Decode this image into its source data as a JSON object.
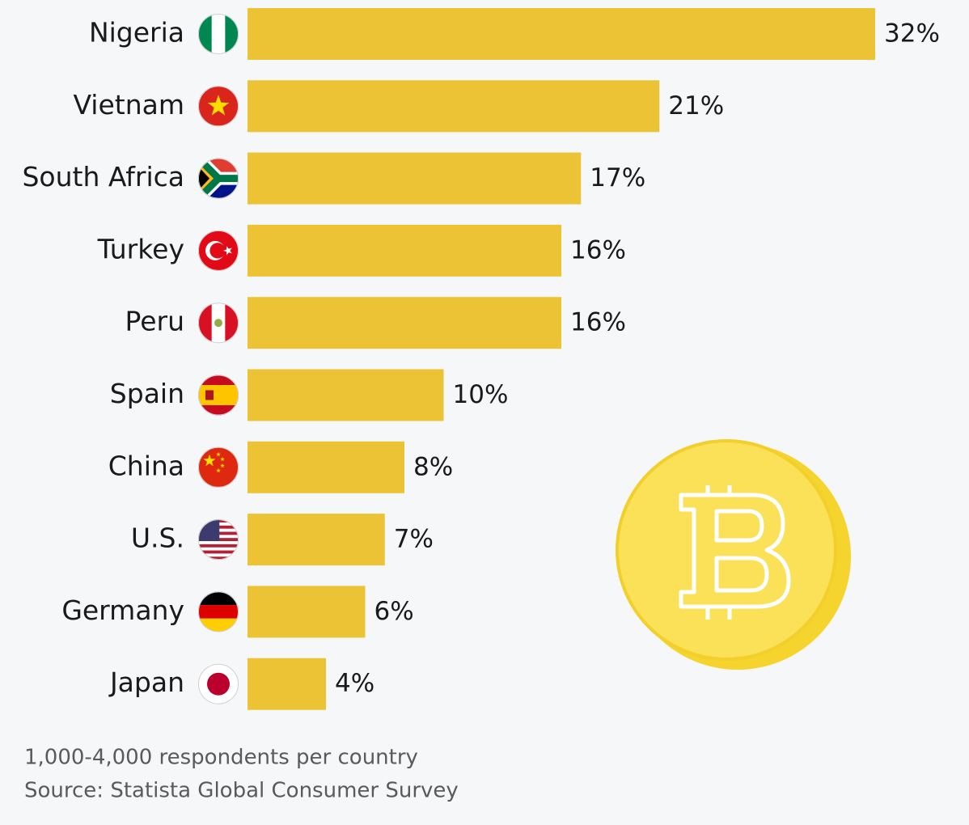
{
  "chart_data": {
    "type": "bar",
    "orientation": "horizontal",
    "categories": [
      "Nigeria",
      "Vietnam",
      "South Africa",
      "Turkey",
      "Peru",
      "Spain",
      "China",
      "U.S.",
      "Germany",
      "Japan"
    ],
    "values": [
      32,
      21,
      17,
      16,
      16,
      10,
      8,
      7,
      6,
      4
    ],
    "value_labels": [
      "32%",
      "21%",
      "17%",
      "16%",
      "16%",
      "10%",
      "8%",
      "7%",
      "6%",
      "4%"
    ],
    "color": "#ebc334",
    "notes": [
      "1,000-4,000 respondents per country",
      "Source: Statista Global Consumer Survey"
    ]
  }
}
